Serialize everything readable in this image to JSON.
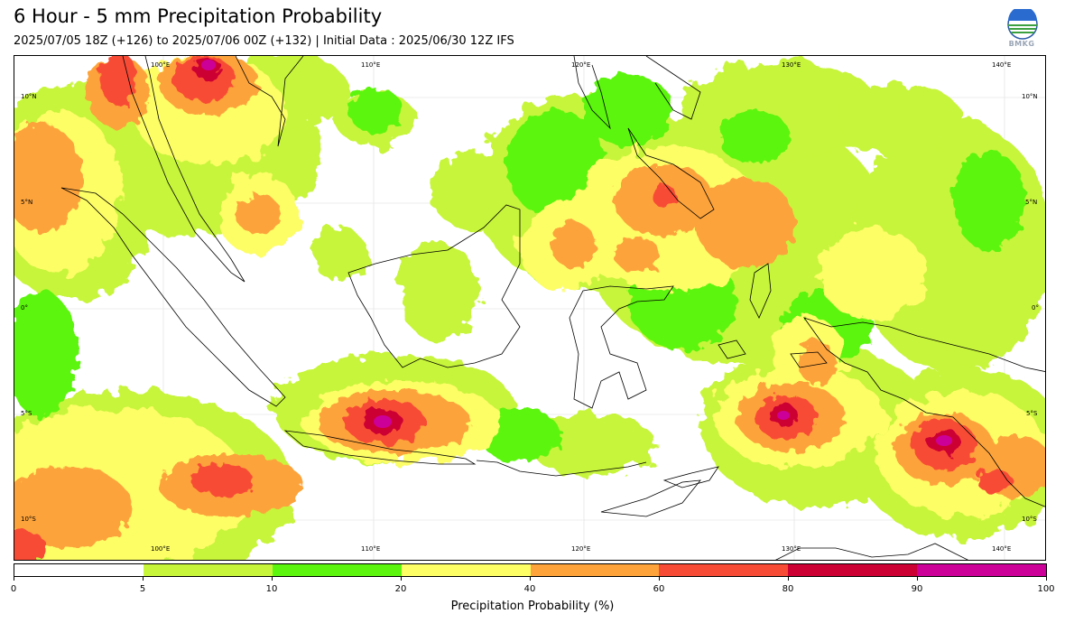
{
  "header": {
    "title": "6 Hour - 5 mm Precipitation Probability",
    "subtitle": "2025/07/05 18Z (+126) to 2025/07/06 00Z (+132) | Initial Data : 2025/06/30 12Z IFS",
    "logo_text": "BMKG"
  },
  "map": {
    "lon_labels_top": [
      "100°E",
      "110°E",
      "120°E",
      "130°E",
      "140°E"
    ],
    "lon_labels_bottom": [
      "100°E",
      "110°E",
      "120°E",
      "130°E",
      "140°E"
    ],
    "lat_labels_left": [
      "10°N",
      "5°N",
      "0°",
      "5°S",
      "10°S"
    ],
    "lat_labels_right": [
      "10°N",
      "5°N",
      "0°",
      "5°S",
      "10°S"
    ]
  },
  "colorbar": {
    "label": "Precipitation Probability (%)",
    "ticks": [
      "0",
      "5",
      "10",
      "20",
      "40",
      "60",
      "80",
      "90",
      "100"
    ],
    "colors": [
      "#ffffff",
      "#c7f53a",
      "#5cf50e",
      "#fdfd66",
      "#fda33a",
      "#f84b35",
      "#cc0033",
      "#cc0099"
    ]
  },
  "colors": {
    "low": "#c7f53a",
    "green": "#5cf50e",
    "yellow": "#fdfd66",
    "orange": "#fda33a",
    "red": "#f84b35",
    "crimson": "#cc0033",
    "magenta": "#cc0099"
  }
}
